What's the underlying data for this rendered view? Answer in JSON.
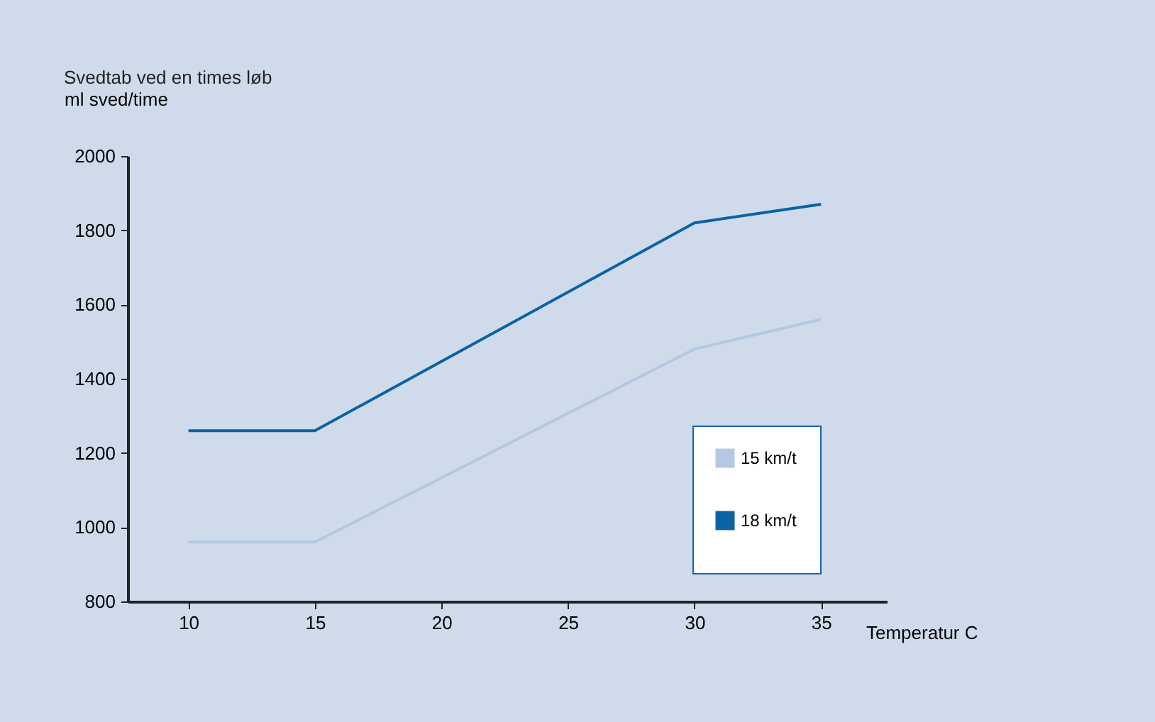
{
  "chart_data": {
    "type": "line",
    "title": "Svedtab ved en times løb",
    "ylabel": "ml sved/time",
    "xlabel": "Temperatur C",
    "x": [
      10,
      15,
      30,
      35
    ],
    "series": [
      {
        "name": "15 km/t",
        "color": "#b3c8e2",
        "values": [
          960,
          960,
          1480,
          1560
        ]
      },
      {
        "name": "18 km/t",
        "color": "#0b62a4",
        "values": [
          1260,
          1260,
          1820,
          1870
        ]
      }
    ],
    "xlim": [
      7.6,
      37.6
    ],
    "xticks": [
      10,
      15,
      20,
      25,
      30,
      35
    ],
    "ylim": [
      800,
      2000
    ],
    "yticks": [
      800,
      1000,
      1200,
      1400,
      1600,
      1800,
      2000
    ],
    "grid": false,
    "legend": "bottom right",
    "marker": "none",
    "line_style": "solid"
  }
}
